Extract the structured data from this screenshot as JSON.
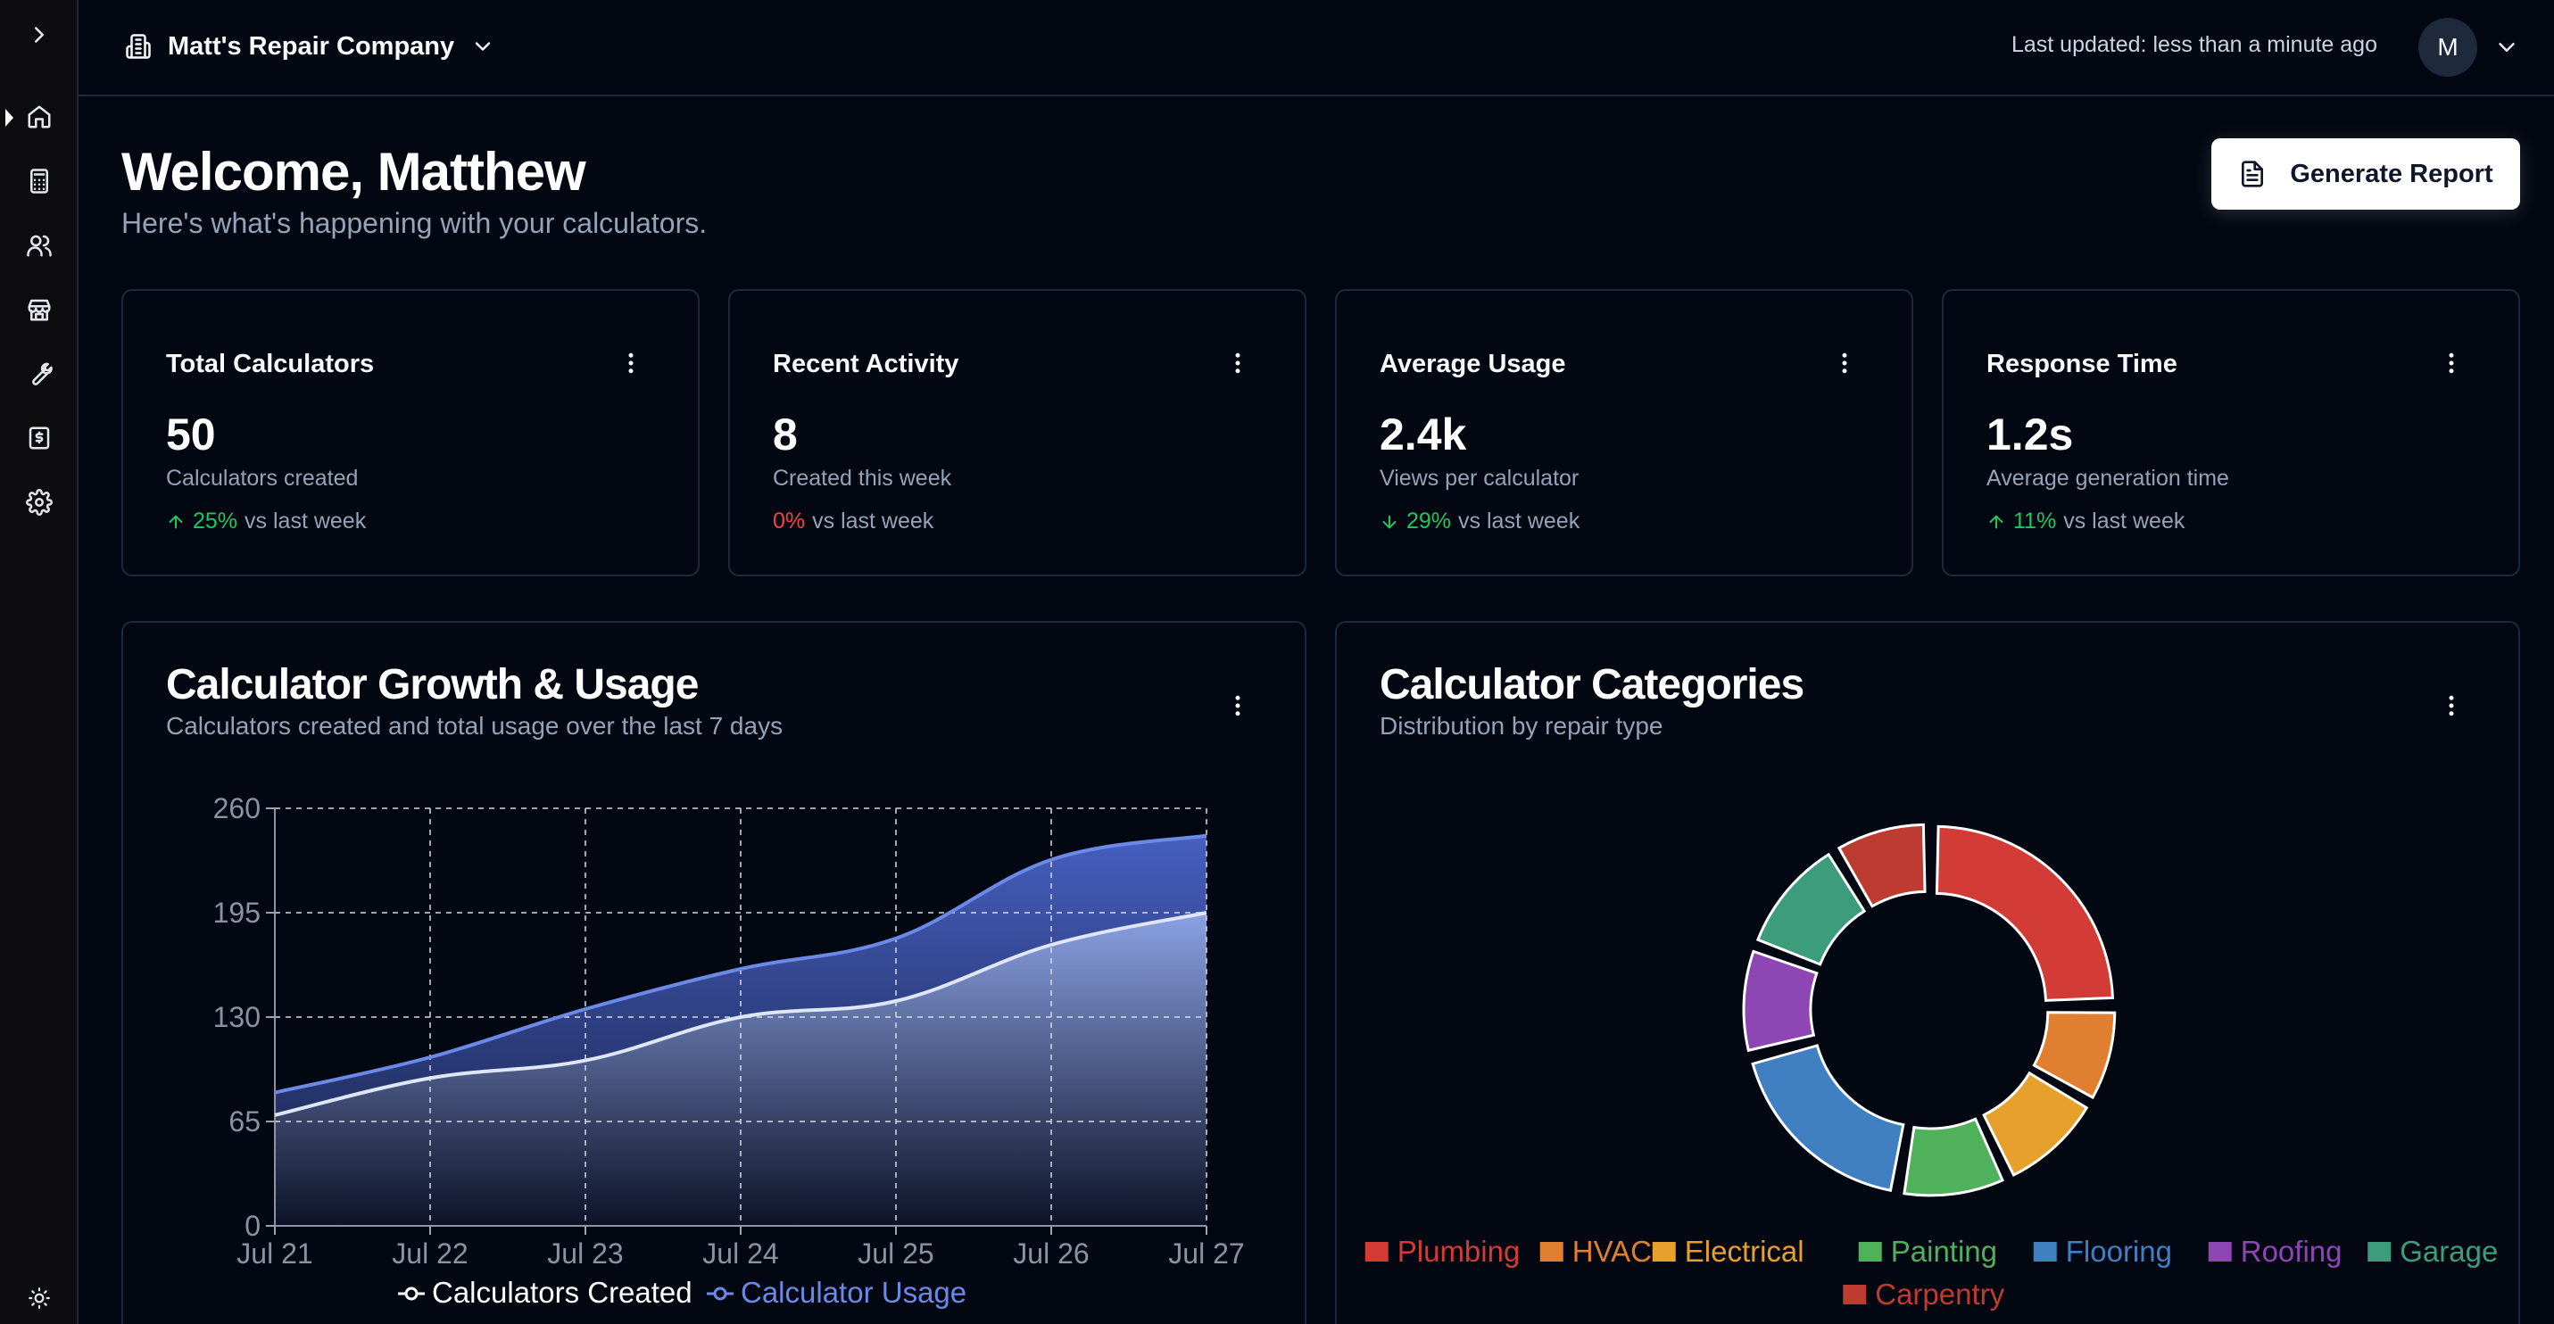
{
  "header": {
    "company_name": "Matt's Repair Company",
    "last_updated": "Last updated: less than a minute ago",
    "avatar_initial": "M"
  },
  "sidebar": {
    "items": [
      {
        "icon": "chevron-right-icon"
      },
      {
        "icon": "home-icon",
        "active": true
      },
      {
        "icon": "calculator-icon"
      },
      {
        "icon": "users-icon"
      },
      {
        "icon": "store-icon"
      },
      {
        "icon": "wrench-icon"
      },
      {
        "icon": "receipt-dollar-icon"
      },
      {
        "icon": "settings-icon"
      },
      {
        "icon": "sun-icon"
      }
    ]
  },
  "welcome": {
    "title": "Welcome, Matthew",
    "subtitle": "Here's what's happening with your calculators."
  },
  "report_button": {
    "label": "Generate Report",
    "icon": "file-text-icon"
  },
  "stats": [
    {
      "title": "Total Calculators",
      "value": "50",
      "desc": "Calculators created",
      "pct": "25%",
      "suffix": "vs last week",
      "direction": "up",
      "color": "#22c55e"
    },
    {
      "title": "Recent Activity",
      "value": "8",
      "desc": "Created this week",
      "pct": "0%",
      "suffix": "vs last week",
      "direction": "none",
      "color": "#ef4444"
    },
    {
      "title": "Average Usage",
      "value": "2.4k",
      "desc": "Views per calculator",
      "pct": "29%",
      "suffix": "vs last week",
      "direction": "down",
      "color": "#22c55e"
    },
    {
      "title": "Response Time",
      "value": "1.2s",
      "desc": "Average generation time",
      "pct": "11%",
      "suffix": "vs last week",
      "direction": "up",
      "color": "#22c55e"
    }
  ],
  "growth_card": {
    "title": "Calculator Growth & Usage",
    "subtitle": "Calculators created and total usage over the last 7 days"
  },
  "categories_card": {
    "title": "Calculator Categories",
    "subtitle": "Distribution by repair type"
  },
  "chart_data": [
    {
      "type": "area",
      "categories": [
        "Jul 21",
        "Jul 22",
        "Jul 23",
        "Jul 24",
        "Jul 25",
        "Jul 26",
        "Jul 27"
      ],
      "series": [
        {
          "name": "Calculators Created",
          "values": [
            69,
            92,
            103,
            130,
            140,
            175,
            195
          ],
          "color": "#ffffff"
        },
        {
          "name": "Calculator Usage",
          "values": [
            83,
            105,
            135,
            160,
            179,
            228,
            243
          ],
          "color": "#6b8ae8"
        }
      ],
      "yticks": [
        0,
        65,
        130,
        195,
        260
      ],
      "ylim": [
        0,
        260
      ],
      "grid": true,
      "legend": "bottom"
    },
    {
      "type": "pie",
      "donut": true,
      "labels": [
        "Plumbing",
        "HVAC",
        "Electrical",
        "Painting",
        "Flooring",
        "Roofing",
        "Garage",
        "Carpentry"
      ],
      "values": [
        23,
        8,
        9,
        9,
        17,
        9,
        10,
        8
      ],
      "colors": [
        "#d23b36",
        "#e07f30",
        "#e8a02d",
        "#4fb15b",
        "#3f7fc2",
        "#8d46b4",
        "#3d9c7c",
        "#bd3b30"
      ],
      "legend": "bottom"
    }
  ]
}
